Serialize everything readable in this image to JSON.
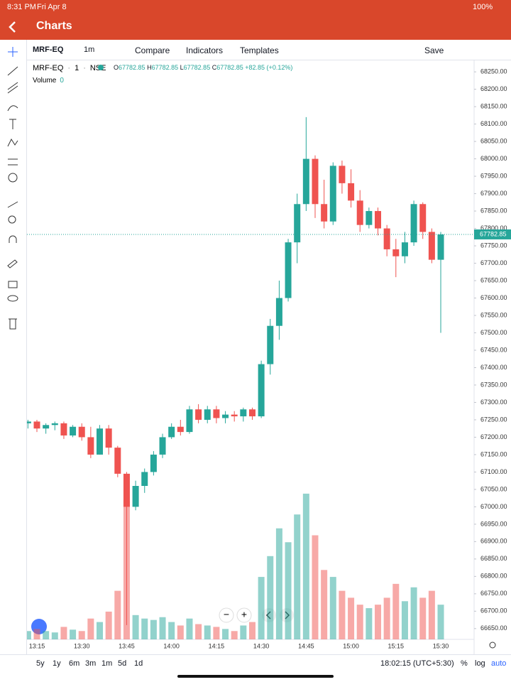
{
  "status_bar": {
    "time": "8:31 PM",
    "date": "Fri Apr 8",
    "battery": "100%"
  },
  "header": {
    "title": "Charts"
  },
  "toolbar": {
    "symbol": "MRF-EQ",
    "interval": "1m",
    "compare": "Compare",
    "indicators": "Indicators",
    "templates": "Templates",
    "save": "Save"
  },
  "chart_data": {
    "type": "candlestick",
    "symbol": "MRF-EQ",
    "interval": "1",
    "exchange": "NSE",
    "legend": [
      {
        "label": "O",
        "value": 67782.85
      },
      {
        "label": "H",
        "value": 67782.85
      },
      {
        "label": "L",
        "value": 67782.85
      },
      {
        "label": "C",
        "value": 67782.85
      }
    ],
    "change": "+82.85 (+0.12%)",
    "volume_label": "Volume",
    "volume_value": 0,
    "last_price": 67782.85,
    "up_color": "#26a69a",
    "down_color": "#ef5350",
    "x": [
      "13:09",
      "13:12",
      "13:15",
      "13:18",
      "13:21",
      "13:24",
      "13:27",
      "13:30",
      "13:33",
      "13:36",
      "13:39",
      "13:42",
      "13:45",
      "13:48",
      "13:51",
      "13:54",
      "13:57",
      "14:00",
      "14:03",
      "14:06",
      "14:09",
      "14:12",
      "14:15",
      "14:18",
      "14:21",
      "14:24",
      "14:27",
      "14:30",
      "14:33",
      "14:36",
      "14:39",
      "14:42",
      "14:45",
      "14:48",
      "14:51",
      "14:54",
      "14:57",
      "15:00",
      "15:03",
      "15:06",
      "15:09",
      "15:12",
      "15:15",
      "15:18",
      "15:21",
      "15:24",
      "15:27",
      "15:30"
    ],
    "open": [
      67230,
      67240,
      67245,
      67225,
      67235,
      67240,
      67205,
      67230,
      67200,
      67150,
      67225,
      67170,
      67095,
      67000,
      67060,
      67100,
      67150,
      67200,
      67230,
      67215,
      67280,
      67250,
      67280,
      67255,
      67265,
      67260,
      67280,
      67260,
      67410,
      67520,
      67600,
      67760,
      67870,
      68000,
      67870,
      67820,
      67980,
      67930,
      67880,
      67810,
      67850,
      67800,
      67740,
      67720,
      67760,
      67870,
      67790,
      67710
    ],
    "high": [
      67245,
      67250,
      67250,
      67240,
      67245,
      67245,
      67235,
      67240,
      67230,
      67235,
      67235,
      67175,
      67100,
      67075,
      67110,
      67160,
      67210,
      67240,
      67250,
      67290,
      67295,
      67290,
      67290,
      67275,
      67275,
      67285,
      67285,
      67420,
      67540,
      67650,
      67770,
      67900,
      68120,
      68010,
      67940,
      67990,
      67995,
      67970,
      67910,
      67860,
      67860,
      67810,
      67770,
      67790,
      67880,
      67875,
      67800,
      67790
    ],
    "low": [
      67195,
      67225,
      67215,
      67210,
      67220,
      67195,
      67200,
      67190,
      67140,
      67150,
      67150,
      67085,
      66660,
      66990,
      67040,
      67090,
      67140,
      67195,
      67205,
      67210,
      67240,
      67240,
      67240,
      67240,
      67245,
      67245,
      67250,
      67255,
      67380,
      67480,
      67590,
      67700,
      67850,
      67830,
      67800,
      67810,
      67900,
      67860,
      67790,
      67800,
      67780,
      67720,
      67660,
      67700,
      67750,
      67770,
      67700,
      67500
    ],
    "close": [
      67240,
      67245,
      67225,
      67235,
      67240,
      67205,
      67230,
      67200,
      67150,
      67225,
      67170,
      67095,
      67000,
      67060,
      67100,
      67150,
      67200,
      67230,
      67215,
      67280,
      67250,
      67280,
      67255,
      67265,
      67260,
      67280,
      67260,
      67410,
      67520,
      67600,
      67760,
      67870,
      68000,
      67870,
      67820,
      67980,
      67930,
      67880,
      67810,
      67850,
      67800,
      67740,
      67720,
      67760,
      67870,
      67790,
      67710,
      67782.85
    ],
    "volume": [
      10,
      12,
      15,
      12,
      10,
      18,
      14,
      12,
      30,
      25,
      40,
      70,
      200,
      35,
      30,
      28,
      32,
      25,
      20,
      30,
      22,
      20,
      18,
      15,
      12,
      20,
      25,
      90,
      120,
      160,
      140,
      180,
      210,
      150,
      100,
      90,
      70,
      60,
      50,
      45,
      50,
      60,
      80,
      55,
      75,
      60,
      70,
      50
    ],
    "volume_lim": [
      0,
      215
    ],
    "ylim": [
      66619,
      68285
    ],
    "yticks": [
      {
        "value": 66650,
        "label": "66650.00"
      },
      {
        "value": 66700,
        "label": "66700.00"
      },
      {
        "value": 66750,
        "label": "66750.00"
      },
      {
        "value": 66800,
        "label": "66800.00"
      },
      {
        "value": 66850,
        "label": "66850.00"
      },
      {
        "value": 66900,
        "label": "66900.00"
      },
      {
        "value": 66950,
        "label": "66950.00"
      },
      {
        "value": 67000,
        "label": "67000.00"
      },
      {
        "value": 67050,
        "label": "67050.00"
      },
      {
        "value": 67100,
        "label": "67100.00"
      },
      {
        "value": 67150,
        "label": "67150.00"
      },
      {
        "value": 67200,
        "label": "67200.00"
      },
      {
        "value": 67250,
        "label": "67250.00"
      },
      {
        "value": 67300,
        "label": "67300.00"
      },
      {
        "value": 67350,
        "label": "67350.00"
      },
      {
        "value": 67400,
        "label": "67400.00"
      },
      {
        "value": 67450,
        "label": "67450.00"
      },
      {
        "value": 67500,
        "label": "67500.00"
      },
      {
        "value": 67550,
        "label": "67550.00"
      },
      {
        "value": 67600,
        "label": "67600.00"
      },
      {
        "value": 67650,
        "label": "67650.00"
      },
      {
        "value": 67700,
        "label": "67700.00"
      },
      {
        "value": 67750,
        "label": "67750.00"
      },
      {
        "value": 67800,
        "label": "67800.00"
      },
      {
        "value": 67850,
        "label": "67850.00"
      },
      {
        "value": 67900,
        "label": "67900.00"
      },
      {
        "value": 67950,
        "label": "67950.00"
      },
      {
        "value": 68000,
        "label": "68000.00"
      },
      {
        "value": 68050,
        "label": "68050.00"
      },
      {
        "value": 68100,
        "label": "68100.00"
      },
      {
        "value": 68150,
        "label": "68150.00"
      },
      {
        "value": 68200,
        "label": "68200.00"
      },
      {
        "value": 68250,
        "label": "68250.00"
      }
    ],
    "xticks": [
      "13:15",
      "13:30",
      "13:45",
      "14:00",
      "14:15",
      "14:30",
      "14:45",
      "15:00",
      "15:15",
      "15:30"
    ]
  },
  "bottom_bar": {
    "ranges": [
      "5y",
      "1y",
      "6m",
      "3m",
      "1m",
      "5d",
      "1d"
    ],
    "clock": "18:02:15 (UTC+5:30)",
    "percent": "%",
    "log": "log",
    "auto": "auto"
  }
}
